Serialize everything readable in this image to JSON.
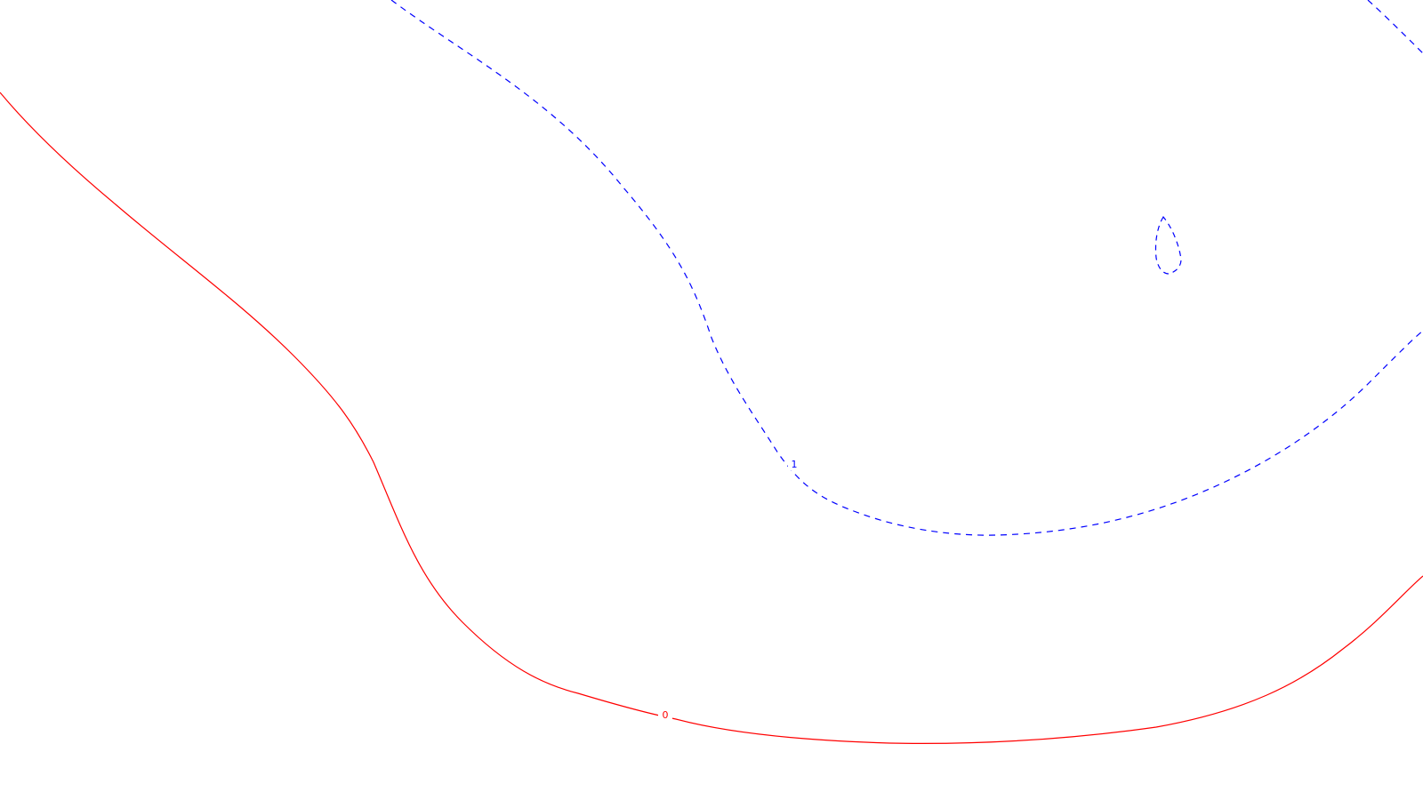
{
  "contours": [
    {
      "level_label": "0",
      "color": "#ff0000",
      "style": "solid"
    },
    {
      "level_label": "1",
      "color": "#0000ff",
      "style": "dashed"
    }
  ]
}
